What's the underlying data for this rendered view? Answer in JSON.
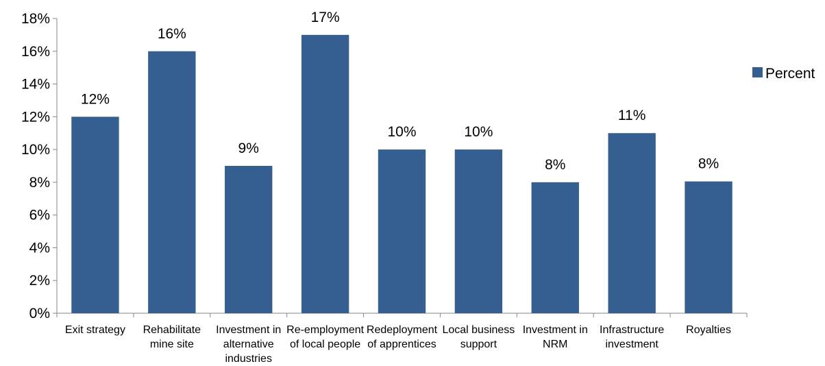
{
  "chart_data": {
    "type": "bar",
    "categories": [
      [
        "Exit strategy"
      ],
      [
        "Rehabilitate",
        "mine site"
      ],
      [
        "Investment in",
        "alternative",
        "industries"
      ],
      [
        "Re-employment",
        "of local people"
      ],
      [
        "Redeployment",
        "of apprentices"
      ],
      [
        "Local business",
        "support"
      ],
      [
        "Investment in",
        "NRM"
      ],
      [
        "Infrastructure",
        "investment"
      ],
      [
        "Royalties"
      ]
    ],
    "series": [
      {
        "name": "Percent",
        "color": "#355f91",
        "values": [
          12,
          16,
          9,
          17,
          10,
          10,
          8,
          11,
          8.05
        ],
        "labels": [
          "12%",
          "16%",
          "9%",
          "17%",
          "10%",
          "10%",
          "8%",
          "11%",
          "8%"
        ]
      }
    ],
    "ylim": [
      0,
      18
    ],
    "yticks": [
      {
        "value": 0,
        "label": "0%"
      },
      {
        "value": 2,
        "label": "2%"
      },
      {
        "value": 4,
        "label": "4%"
      },
      {
        "value": 6,
        "label": "6%"
      },
      {
        "value": 8,
        "label": "8%"
      },
      {
        "value": 10,
        "label": "10%"
      },
      {
        "value": 12,
        "label": "12%"
      },
      {
        "value": 14,
        "label": "14%"
      },
      {
        "value": 16,
        "label": "16%"
      },
      {
        "value": 18,
        "label": "18%"
      }
    ],
    "title": "",
    "xlabel": "",
    "ylabel": "",
    "grid": false,
    "legend": "right"
  }
}
